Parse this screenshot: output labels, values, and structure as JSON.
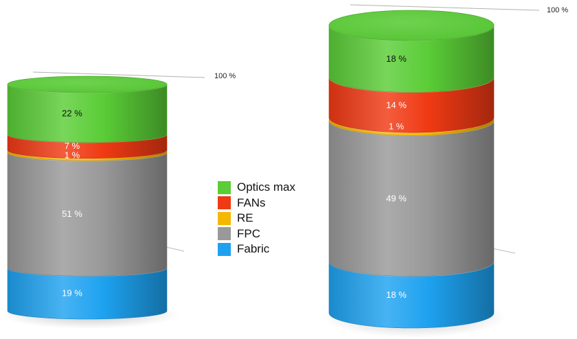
{
  "chart_data": {
    "type": "stacked-cylinder",
    "series": [
      {
        "name": "Fabric",
        "color": "#1ea2f0"
      },
      {
        "name": "FPC",
        "color": "#999999"
      },
      {
        "name": "RE",
        "color": "#f5b800"
      },
      {
        "name": "FANs",
        "color": "#f03a14"
      },
      {
        "name": "Optics max",
        "color": "#5acd37"
      }
    ],
    "stacks": [
      {
        "values": [
          19,
          51,
          1,
          7,
          22
        ],
        "labels": [
          "19 %",
          "51 %",
          "1 %",
          "7 %",
          "22 %"
        ],
        "reference_label": "100 %"
      },
      {
        "values": [
          18,
          49,
          1,
          14,
          18
        ],
        "labels": [
          "18 %",
          "49 %",
          "1 %",
          "14 %",
          "18 %"
        ],
        "reference_label": "100 %"
      }
    ],
    "legend": {
      "position": "center",
      "entries": [
        "Optics max",
        "FANs",
        "RE",
        "FPC",
        "Fabric"
      ]
    }
  }
}
